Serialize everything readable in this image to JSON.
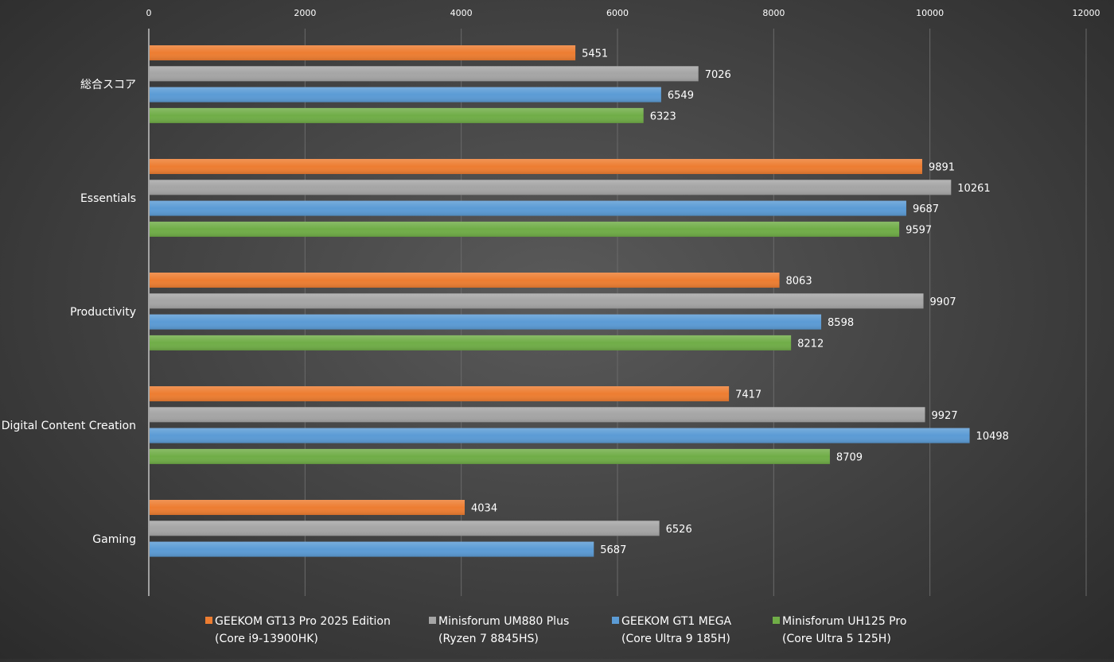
{
  "chart_data": {
    "type": "bar",
    "orientation": "horizontal",
    "title": "",
    "xlabel": "",
    "ylabel": "",
    "xlim": [
      0,
      12000
    ],
    "x_ticks": [
      0,
      2000,
      4000,
      6000,
      8000,
      10000,
      12000
    ],
    "x_axis_position": "top",
    "grid": true,
    "legend_position": "bottom",
    "categories": [
      "総合スコア",
      "Essentials",
      "Productivity",
      "Digital Content Creation",
      "Gaming"
    ],
    "series": [
      {
        "name": "GEEKOM GT13 Pro 2025 Edition",
        "subname": "(Core i9-13900HK)",
        "color": "#ed7d31",
        "values": [
          5451,
          9891,
          8063,
          7417,
          4034
        ]
      },
      {
        "name": "Minisforum UM880 Plus",
        "subname": "(Ryzen 7 8845HS)",
        "color": "#a5a5a5",
        "values": [
          7026,
          10261,
          9907,
          9927,
          6526
        ]
      },
      {
        "name": "GEEKOM GT1 MEGA",
        "subname": "(Core Ultra 9 185H)",
        "color": "#5b9bd5",
        "values": [
          6549,
          9687,
          8598,
          10498,
          5687
        ]
      },
      {
        "name": "Minisforum UH125 Pro",
        "subname": "(Core Ultra 5 125H)",
        "color": "#70ad47",
        "values": [
          6323,
          9597,
          8212,
          8709,
          null
        ]
      }
    ]
  }
}
